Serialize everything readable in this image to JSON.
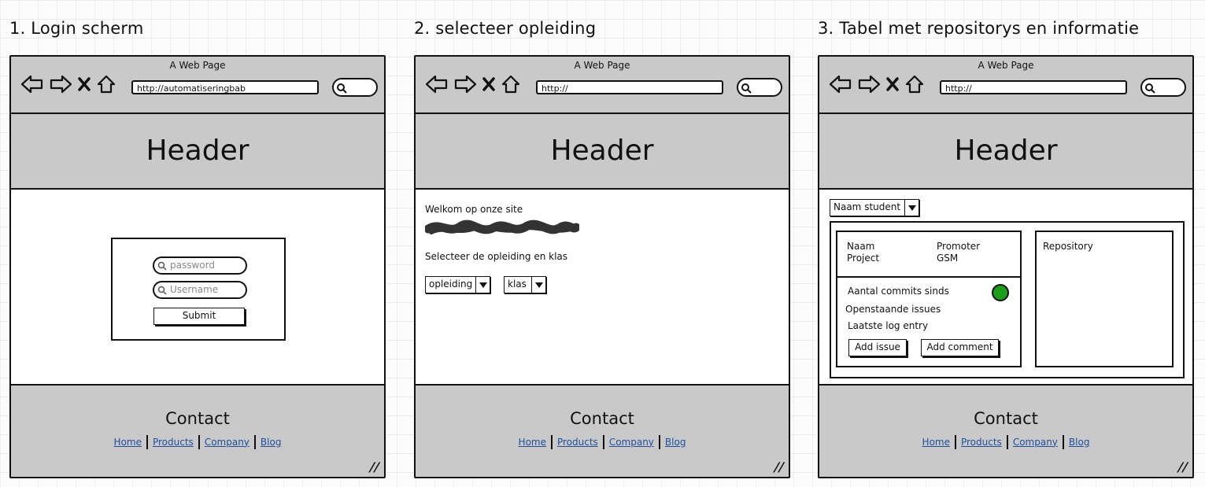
{
  "common": {
    "page_title": "A Web Page",
    "header": "Header",
    "contact": "Contact",
    "links": [
      "Home",
      "Products",
      "Company",
      "Blog"
    ]
  },
  "screen1": {
    "caption": "1. Login scherm",
    "url": "http://automatiseringbab",
    "password_placeholder": "password",
    "username_placeholder": "Username",
    "submit_label": "Submit"
  },
  "screen2": {
    "caption": "2. selecteer opleiding",
    "url": "http://",
    "welcome_text": "Welkom op onze site",
    "select_text": "Selecteer de opleiding en klas",
    "dropdown_opleiding": "opleiding",
    "dropdown_klas": "klas"
  },
  "screen3": {
    "caption": "3. Tabel met repositorys en informatie",
    "url": "http://",
    "student_dropdown": "Naam student",
    "naam": "Naam",
    "project": "Project",
    "promoter": "Promoter",
    "gsm": "GSM",
    "commits": "Aantal commits sinds",
    "issues": "Openstaande issues",
    "log": "Laatste log entry",
    "add_issue": "Add issue",
    "add_comment": "Add comment",
    "repository": "Repository",
    "status_color": "#1a9e1a"
  }
}
